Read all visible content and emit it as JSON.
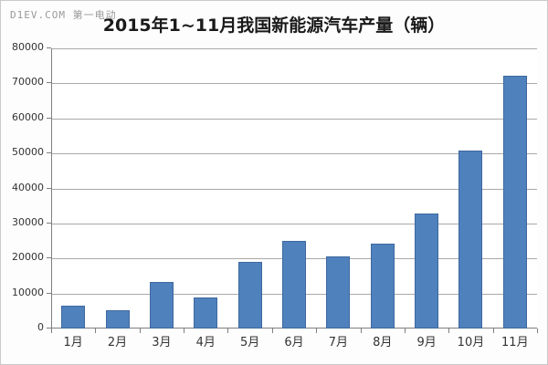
{
  "watermark": "D1EV.COM 第一电动",
  "chart_data": {
    "type": "bar",
    "title": "2015年1~11月我国新能源汽车产量（辆）",
    "categories": [
      "1月",
      "2月",
      "3月",
      "4月",
      "5月",
      "6月",
      "7月",
      "8月",
      "9月",
      "10月",
      "11月"
    ],
    "values": [
      6600,
      5100,
      13400,
      8900,
      19100,
      25000,
      20600,
      24200,
      32800,
      50700,
      72300
    ],
    "xlabel": "",
    "ylabel": "",
    "ylim": [
      0,
      80000
    ],
    "ytick_interval": 10000,
    "ytick_labels": [
      "0",
      "10000",
      "20000",
      "30000",
      "40000",
      "50000",
      "60000",
      "70000",
      "80000"
    ],
    "grid": true,
    "legend": "none",
    "colors": {
      "bar_fill": "#4F81BD",
      "bar_border": "#3E689E",
      "gridline": "#A9A9A9",
      "axis": "#7F7F7F",
      "title_text": "#1A1A1A",
      "watermark_text": "#999999",
      "plot_background": "#FFFFFF"
    }
  }
}
